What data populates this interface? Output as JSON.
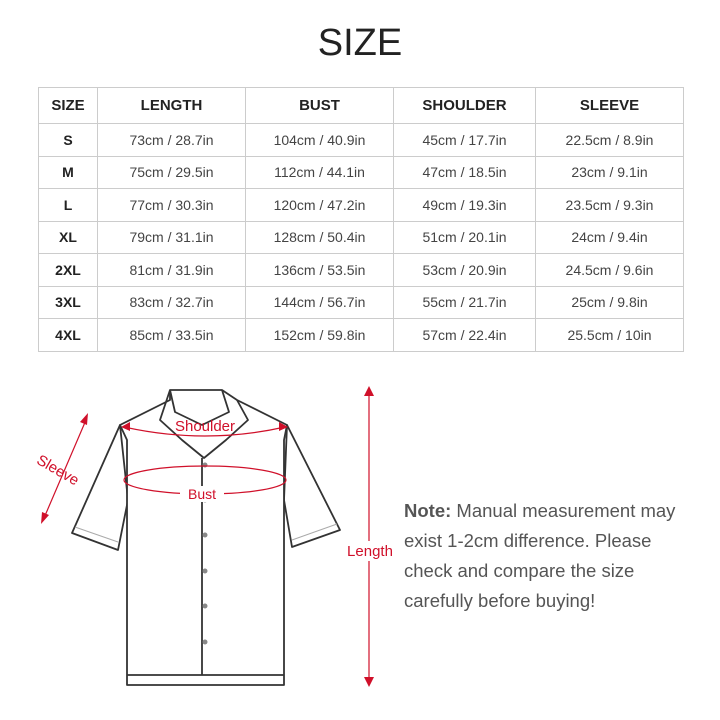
{
  "title": "SIZE",
  "table": {
    "headers": [
      "SIZE",
      "LENGTH",
      "BUST",
      "SHOULDER",
      "SLEEVE"
    ],
    "rows": [
      [
        "S",
        "73cm / 28.7in",
        "104cm / 40.9in",
        "45cm / 17.7in",
        "22.5cm / 8.9in"
      ],
      [
        "M",
        "75cm / 29.5in",
        "112cm / 44.1in",
        "47cm / 18.5in",
        "23cm / 9.1in"
      ],
      [
        "L",
        "77cm / 30.3in",
        "120cm / 47.2in",
        "49cm / 19.3in",
        "23.5cm / 9.3in"
      ],
      [
        "XL",
        "79cm / 31.1in",
        "128cm / 50.4in",
        "51cm / 20.1in",
        "24cm / 9.4in"
      ],
      [
        "2XL",
        "81cm / 31.9in",
        "136cm / 53.5in",
        "53cm / 20.9in",
        "24.5cm / 9.6in"
      ],
      [
        "3XL",
        "83cm / 32.7in",
        "144cm / 56.7in",
        "55cm / 21.7in",
        "25cm / 9.8in"
      ],
      [
        "4XL",
        "85cm / 33.5in",
        "152cm / 59.8in",
        "57cm / 22.4in",
        "25.5cm / 10in"
      ]
    ]
  },
  "diagram": {
    "shoulder": "Shoulder",
    "bust": "Bust",
    "sleeve": "Sleeve",
    "length": "Length",
    "accent": "#d0102a"
  },
  "note": {
    "label": "Note:",
    "text": "Manual measurement may exist 1-2cm difference. Please check and compare the size carefully before buying!"
  }
}
